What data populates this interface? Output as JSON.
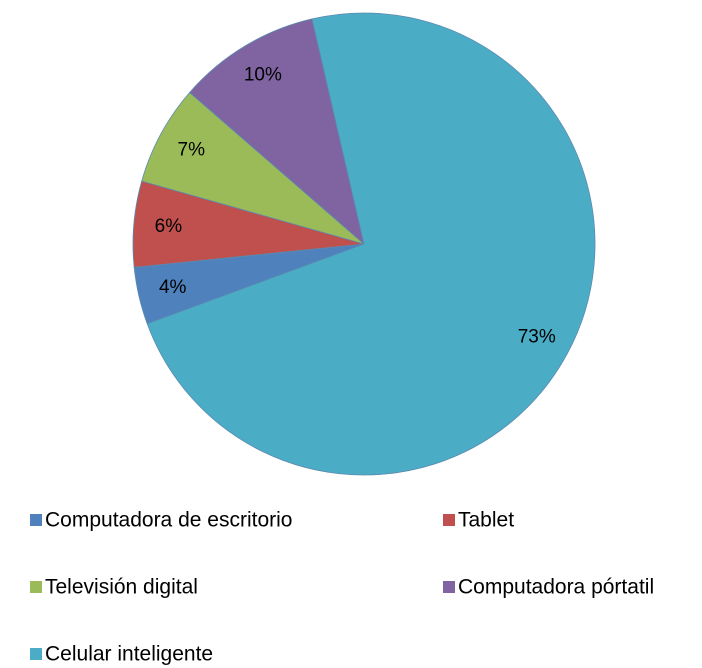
{
  "chart_data": {
    "type": "pie",
    "categories": [
      "Computadora de escritorio",
      "Tablet",
      "Televisión digital",
      "Computadora pórtatil",
      "Celular inteligente"
    ],
    "values": [
      4,
      6,
      7,
      10,
      73
    ],
    "value_labels": [
      "4%",
      "6%",
      "7%",
      "10%",
      "73%"
    ],
    "colors": [
      "#4f81bd",
      "#c0504d",
      "#9bbb59",
      "#8064a2",
      "#4bacc6"
    ],
    "legend": "bottom"
  }
}
